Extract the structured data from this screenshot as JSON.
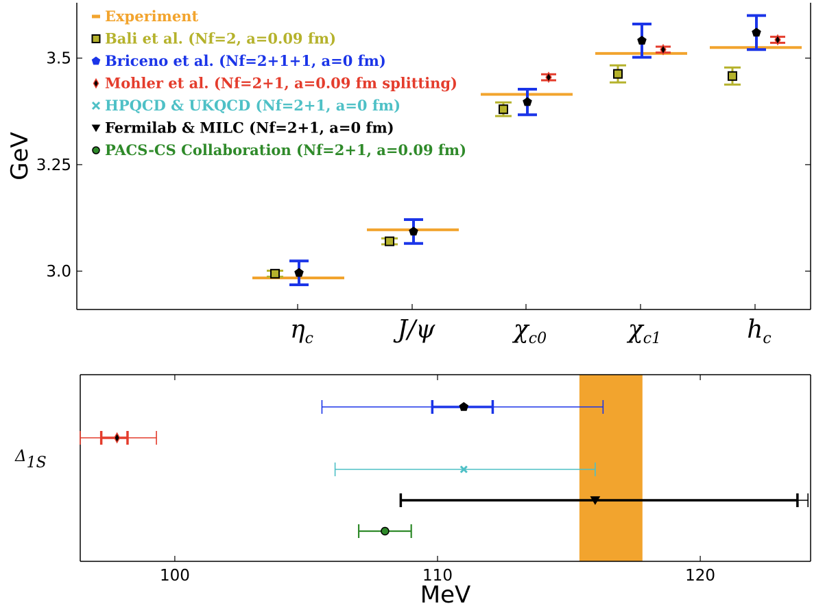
{
  "chart_data": [
    {
      "type": "scatter",
      "ylabel": "GeV",
      "ylim": [
        2.91,
        3.63
      ],
      "yticks": [
        "3.0",
        "3.25",
        "3.5"
      ],
      "categories": [
        {
          "main": "η",
          "sub": "c"
        },
        {
          "main": "J/ψ",
          "sub": ""
        },
        {
          "main": "χ",
          "sub": "c0"
        },
        {
          "main": "χ",
          "sub": "c1"
        },
        {
          "main": "h",
          "sub": "c"
        }
      ],
      "legend_position": "top-left",
      "legend": [
        {
          "label": "Experiment",
          "color": "#f2a42e",
          "marker": "dash"
        },
        {
          "label": "Bali et al. (Nf=2, a=0.09 fm)",
          "color": "#b5b22c",
          "marker": "square"
        },
        {
          "label": "Briceno et al. (Nf=2+1+1, a=0 fm)",
          "color": "#1b35e8",
          "marker": "pentagon"
        },
        {
          "label": "Mohler et al. (Nf=2+1, a=0.09 fm splitting)",
          "color": "#e43c2c",
          "marker": "diamond"
        },
        {
          "label": "HPQCD & UKQCD (Nf=2+1, a=0 fm)",
          "color": "#4ec0c6",
          "marker": "x"
        },
        {
          "label": "Fermilab & MILC (Nf=2+1, a=0 fm)",
          "color": "#000000",
          "marker": "triangle"
        },
        {
          "label": "PACS-CS Collaboration (Nf=2+1, a=0.09 fm)",
          "color": "#2f8a2a",
          "marker": "circle"
        }
      ],
      "series": [
        {
          "name": "Experiment",
          "values": [
            2.984,
            3.097,
            3.415,
            3.511,
            3.525
          ]
        },
        {
          "name": "Bali et al. (Nf=2, a=0.09 fm)",
          "points": [
            {
              "x": 0,
              "y": 2.994,
              "err": 0.007
            },
            {
              "x": 1,
              "y": 3.07,
              "err": 0.007
            },
            {
              "x": 2,
              "y": 3.38,
              "err": 0.016
            },
            {
              "x": 3,
              "y": 3.463,
              "err": 0.02
            },
            {
              "x": 4,
              "y": 3.458,
              "err": 0.02
            }
          ]
        },
        {
          "name": "Briceno et al. (Nf=2+1+1, a=0 fm)",
          "points": [
            {
              "x": 0,
              "y": 2.996,
              "err": 0.028
            },
            {
              "x": 1,
              "y": 3.093,
              "err": 0.028
            },
            {
              "x": 2,
              "y": 3.397,
              "err": 0.03
            },
            {
              "x": 3,
              "y": 3.541,
              "err": 0.039
            },
            {
              "x": 4,
              "y": 3.56,
              "err": 0.04
            }
          ]
        },
        {
          "name": "Mohler et al. (Nf=2+1, a=0.09 fm splitting)",
          "points": [
            {
              "x": 2,
              "y": 3.455,
              "err": 0.007
            },
            {
              "x": 3,
              "y": 3.52,
              "err": 0.007
            },
            {
              "x": 4,
              "y": 3.543,
              "err": 0.007
            }
          ]
        }
      ]
    },
    {
      "type": "scatter",
      "xlabel": "MeV",
      "ylabel": "Δ",
      "ylabel_sub": "1S",
      "xlim": [
        96.4,
        124.2
      ],
      "xticks": [
        100,
        110,
        120
      ],
      "band": {
        "label": "Experiment",
        "x0": 115.4,
        "x1": 117.8
      },
      "series": [
        {
          "name": "Briceno et al. (Nf=2+1+1, a=0 fm)",
          "x": 111.0,
          "stat": [
            109.8,
            112.1
          ],
          "sys": [
            105.6,
            116.3
          ]
        },
        {
          "name": "Mohler et al. (Nf=2+1, a=0.09 fm splitting)",
          "x": 97.8,
          "stat": [
            97.2,
            98.2
          ],
          "sys": [
            96.4,
            99.3
          ]
        },
        {
          "name": "HPQCD & UKQCD (Nf=2+1, a=0 fm)",
          "x": 111.0,
          "stat": [
            111.0,
            111.0
          ],
          "sys": [
            106.1,
            116.0
          ]
        },
        {
          "name": "Fermilab & MILC (Nf=2+1, a=0 fm)",
          "x": 116.0,
          "stat": [
            108.6,
            123.7
          ],
          "sys": [
            108.6,
            124.1
          ]
        },
        {
          "name": "PACS-CS Collaboration (Nf=2+1, a=0.09 fm)",
          "x": 108.0,
          "stat": [
            107.0,
            109.0
          ],
          "sys": [
            107.0,
            109.0
          ]
        }
      ]
    }
  ]
}
